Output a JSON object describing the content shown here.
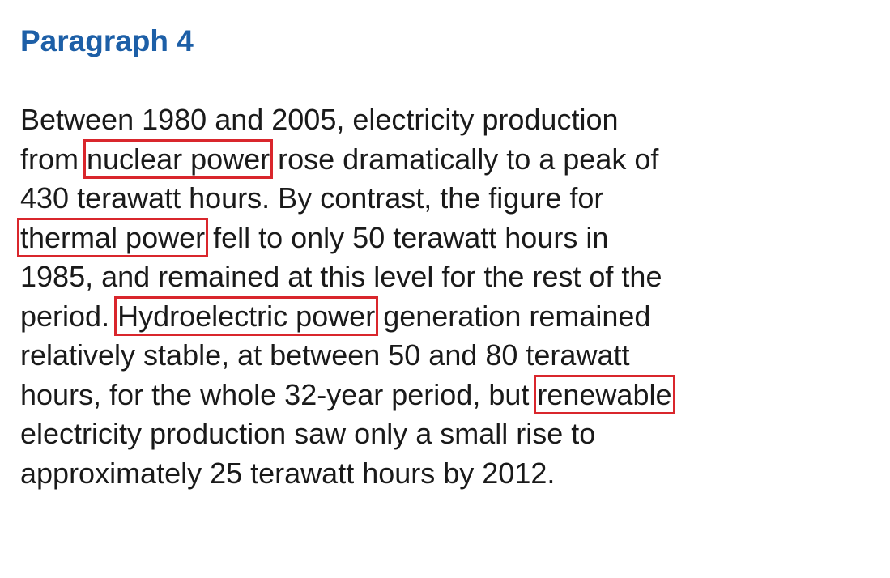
{
  "heading": "Paragraph 4",
  "lines": [
    [
      "Between 1980 and 2005, electricity production"
    ],
    [
      "from ",
      "nuclear power",
      " rose dramatically to a peak of"
    ],
    [
      "430 terawatt hours. By contrast, the figure for"
    ],
    [
      "thermal power",
      " fell to only 50 terawatt hours in"
    ],
    [
      "1985, and remained at this level for the rest of the"
    ],
    [
      "period. ",
      "Hydroelectric power",
      " generation remained"
    ],
    [
      "relatively stable, at between 50 and 80 terawatt"
    ],
    [
      "hours, for the whole 32-year period, but ",
      "renewable"
    ],
    [
      "electricity production saw only a small rise to"
    ],
    [
      "approximately 25 terawatt hours by 2012."
    ]
  ],
  "highlight_color": "#d9262c",
  "heading_color": "#1d5fa7"
}
